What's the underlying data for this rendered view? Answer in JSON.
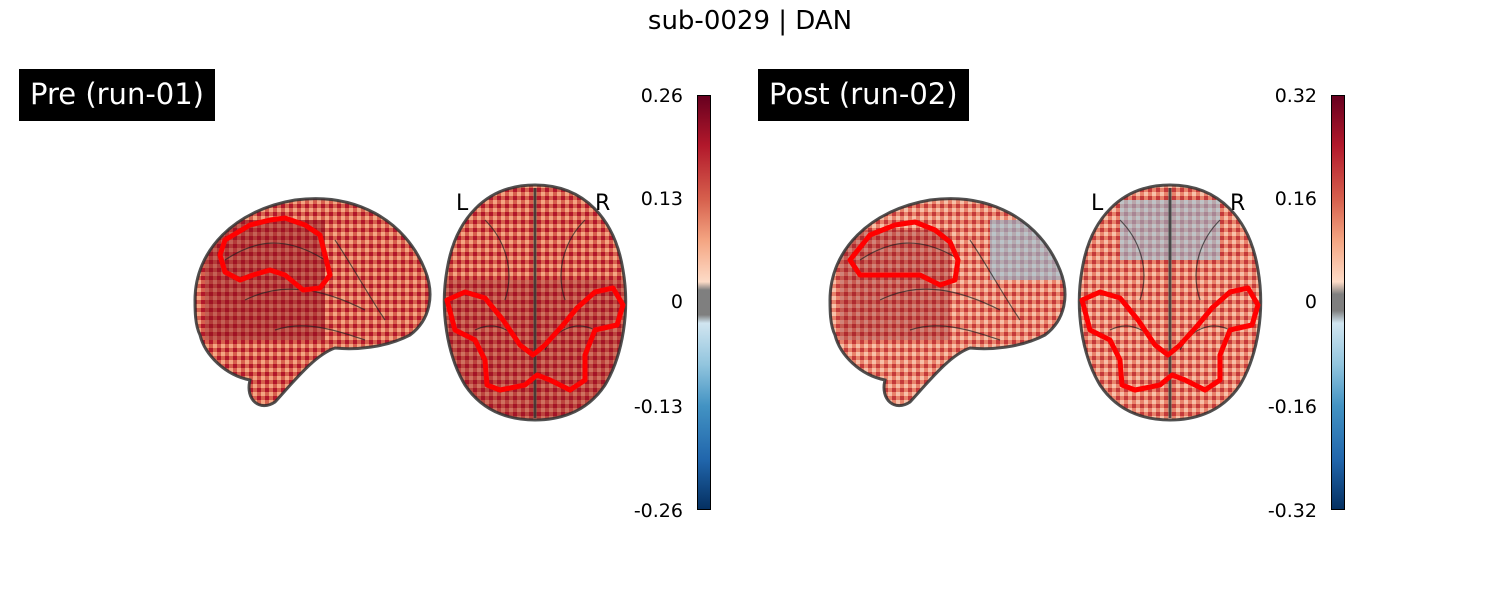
{
  "title": "sub-0029 | DAN",
  "panels": [
    {
      "label": "Pre (run-01)",
      "colorbar_ticks": [
        "0.26",
        "0.13",
        "0",
        "-0.13",
        "-0.26"
      ],
      "orientation_left": "L",
      "orientation_right": "R"
    },
    {
      "label": "Post (run-02)",
      "colorbar_ticks": [
        "0.32",
        "0.16",
        "0",
        "-0.16",
        "-0.32"
      ],
      "orientation_left": "L",
      "orientation_right": "R"
    }
  ],
  "colors": {
    "colormap": [
      "#053061",
      "#2166ac",
      "#4393c3",
      "#92c5de",
      "#d1e5f0",
      "#f7f7f7",
      "#fddbc7",
      "#f4a582",
      "#d6604d",
      "#b2182b",
      "#67001f"
    ],
    "threshold_band": "#808080",
    "roi_outline": "#ff0000",
    "brain_outline": "#333333"
  }
}
